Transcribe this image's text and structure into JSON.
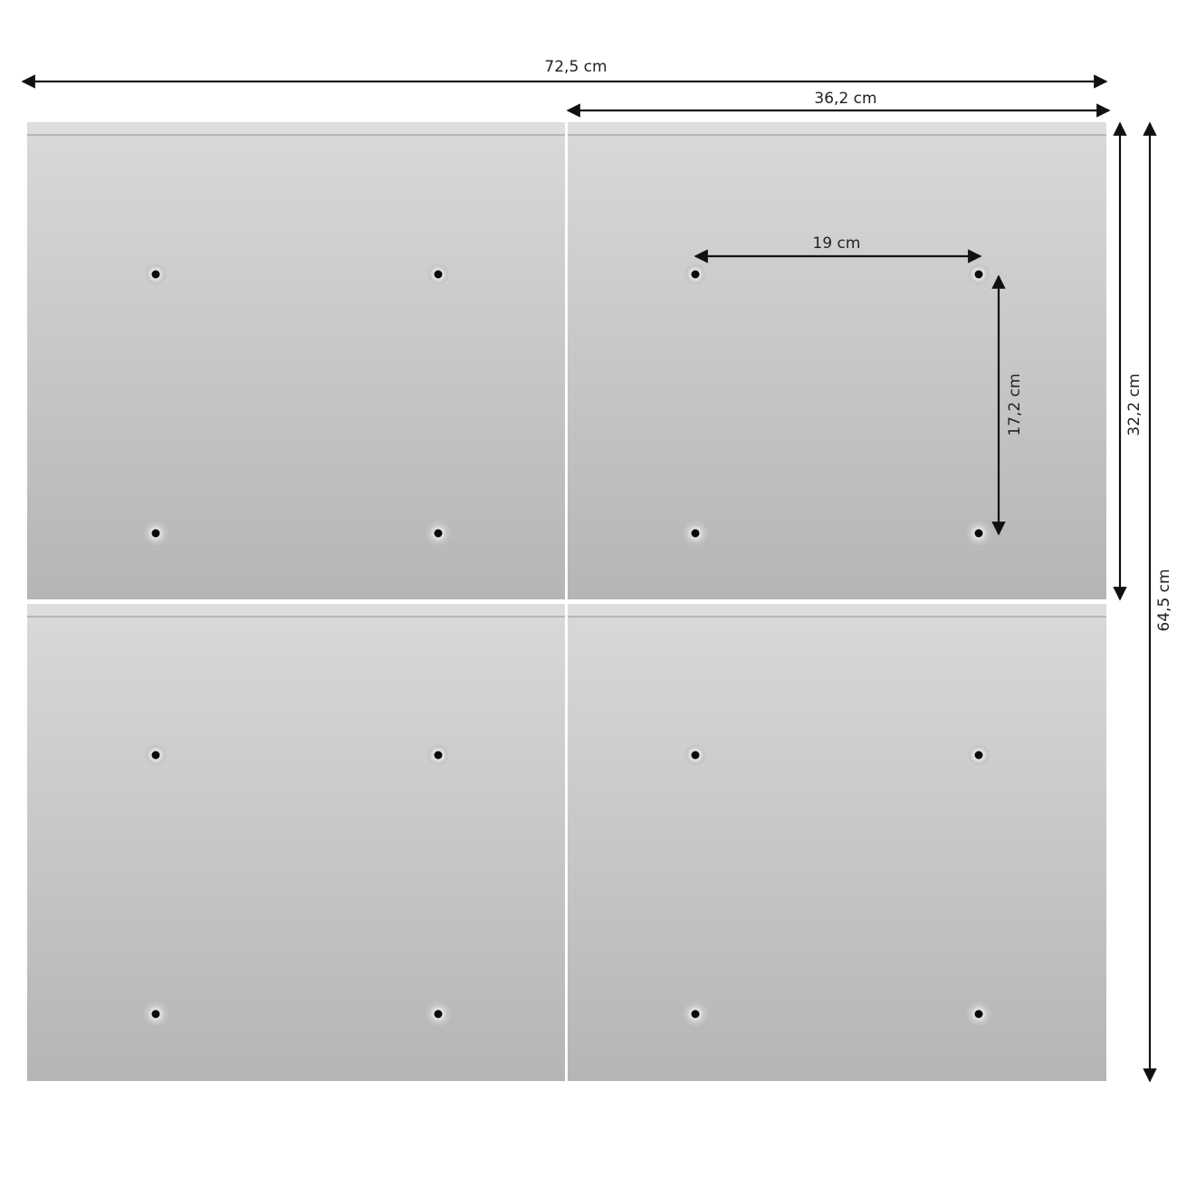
{
  "dimensions": {
    "total_width": "72,5 cm",
    "panel_width": "36,2 cm",
    "hole_spacing_horizontal": "19 cm",
    "hole_spacing_vertical": "17,2 cm",
    "panel_height": "32,2 cm",
    "total_height": "64,5 cm"
  },
  "colors": {
    "panel_top": "#d9d9d9",
    "panel_bottom": "#b5b5b5",
    "arrow": "#111111"
  }
}
